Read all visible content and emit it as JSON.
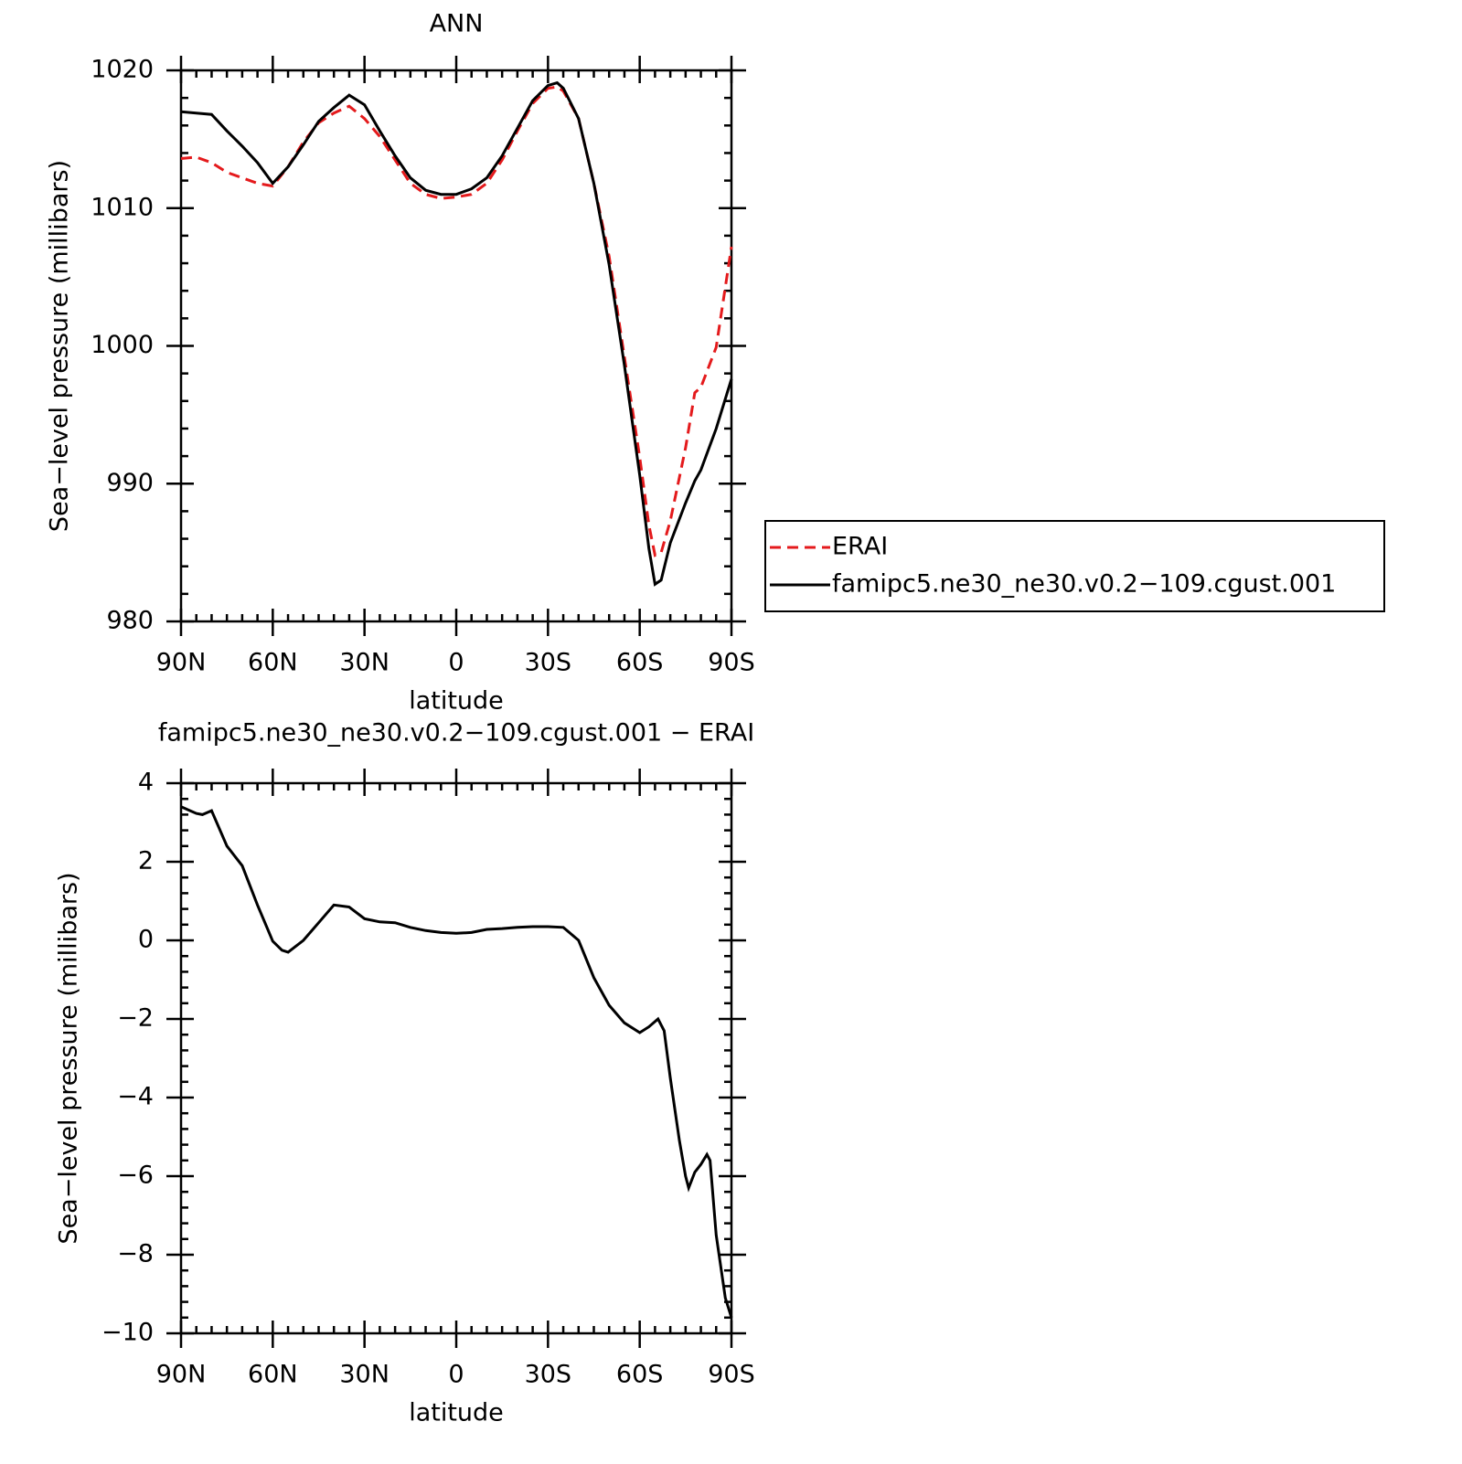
{
  "chart_data": [
    {
      "type": "line",
      "title": "ANN",
      "xlabel": "latitude",
      "ylabel": "Sea−level pressure (millibars)",
      "x": [
        90,
        85,
        80,
        75,
        70,
        65,
        60,
        55,
        50,
        45,
        40,
        35,
        30,
        25,
        20,
        15,
        10,
        5,
        0,
        -5,
        -10,
        -15,
        -20,
        -25,
        -30,
        -33,
        -35,
        -40,
        -45,
        -50,
        -55,
        -60,
        -63,
        -65,
        -67,
        -70,
        -75,
        -78,
        -80,
        -85,
        -90
      ],
      "series": [
        {
          "name": "ERAI",
          "color": "#e41a1c",
          "linestyle": "dashed",
          "values": [
            1013.6,
            1013.7,
            1013.3,
            1012.6,
            1012.2,
            1011.8,
            1011.6,
            1013.0,
            1014.8,
            1016.2,
            1016.9,
            1017.4,
            1016.5,
            1015.2,
            1013.5,
            1011.8,
            1011.0,
            1010.7,
            1010.8,
            1011.0,
            1011.8,
            1013.5,
            1015.6,
            1017.6,
            1018.7,
            1018.8,
            1018.5,
            1016.5,
            1011.8,
            1006.5,
            999.2,
            991.9,
            987.0,
            984.8,
            985.0,
            987.3,
            992.6,
            996.6,
            997.0,
            999.9,
            1007.2
          ]
        },
        {
          "name": "famipc5.ne30_ne30.v0.2−109.cgust.001",
          "color": "#000000",
          "linestyle": "solid",
          "values": [
            1017.0,
            1016.9,
            1016.8,
            1015.6,
            1014.5,
            1013.3,
            1011.8,
            1013.0,
            1014.6,
            1016.3,
            1017.3,
            1018.2,
            1017.5,
            1015.6,
            1013.8,
            1012.2,
            1011.3,
            1011.0,
            1011.0,
            1011.4,
            1012.2,
            1013.8,
            1015.8,
            1017.8,
            1018.9,
            1019.1,
            1018.7,
            1016.5,
            1011.8,
            1005.9,
            998.6,
            990.6,
            985.3,
            982.7,
            983.0,
            985.7,
            988.6,
            990.2,
            991.0,
            994.0,
            997.6
          ]
        }
      ],
      "xlim": [
        90,
        -90
      ],
      "xticks": [
        {
          "value": 90,
          "label": "90N"
        },
        {
          "value": 60,
          "label": "60N"
        },
        {
          "value": 30,
          "label": "30N"
        },
        0,
        {
          "value": -30,
          "label": "30S"
        },
        {
          "value": -60,
          "label": "60S"
        },
        {
          "value": -90,
          "label": "90S"
        }
      ],
      "ylim": [
        980,
        1020
      ],
      "yticks": [
        980,
        990,
        1000,
        1010,
        1020
      ],
      "legend": "right"
    },
    {
      "type": "line",
      "title": "famipc5.ne30_ne30.v0.2−109.cgust.001  −  ERAI",
      "xlabel": "latitude",
      "ylabel": "Sea−level pressure (millibars)",
      "x": [
        90,
        85,
        83,
        80,
        75,
        70,
        65,
        60,
        57,
        55,
        50,
        45,
        40,
        35,
        30,
        25,
        20,
        15,
        10,
        5,
        0,
        -5,
        -10,
        -15,
        -20,
        -25,
        -30,
        -35,
        -40,
        -45,
        -50,
        -55,
        -60,
        -63,
        -66,
        -68,
        -70,
        -73,
        -75,
        -76,
        -78,
        -80,
        -82,
        -83,
        -85,
        -88,
        -90
      ],
      "series": [
        {
          "color": "#000000",
          "linestyle": "solid",
          "values": [
            3.4,
            3.23,
            3.2,
            3.3,
            2.4,
            1.9,
            0.9,
            -0.02,
            -0.25,
            -0.3,
            0.0,
            0.45,
            0.9,
            0.85,
            0.55,
            0.47,
            0.45,
            0.33,
            0.25,
            0.2,
            0.18,
            0.2,
            0.28,
            0.3,
            0.33,
            0.35,
            0.35,
            0.33,
            0,
            -0.95,
            -1.65,
            -2.1,
            -2.35,
            -2.2,
            -2.0,
            -2.3,
            -3.5,
            -5.1,
            -6.0,
            -6.3,
            -5.9,
            -5.7,
            -5.45,
            -5.6,
            -7.5,
            -9.1,
            -9.6
          ]
        }
      ],
      "xlim": [
        90,
        -90
      ],
      "xticks": [
        {
          "value": 90,
          "label": "90N"
        },
        {
          "value": 60,
          "label": "60N"
        },
        {
          "value": 30,
          "label": "30N"
        },
        0,
        {
          "value": -30,
          "label": "30S"
        },
        {
          "value": -60,
          "label": "60S"
        },
        {
          "value": -90,
          "label": "90S"
        }
      ],
      "ylim": [
        -10,
        4
      ],
      "yticks": [
        {
          "value": -10,
          "label": "−10"
        },
        {
          "value": -8,
          "label": "−8"
        },
        {
          "value": -6,
          "label": "−6"
        },
        {
          "value": -4,
          "label": "−4"
        },
        {
          "value": -2,
          "label": "−2"
        },
        0,
        2,
        4
      ]
    }
  ]
}
